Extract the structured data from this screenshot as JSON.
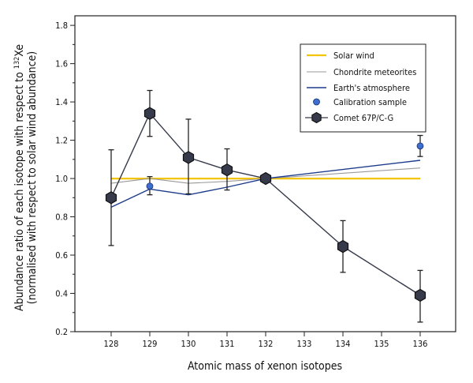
{
  "chart_data": {
    "type": "line",
    "title": "",
    "xlabel": "Atomic mass of xenon isotopes",
    "ylabel_line1": "Abundance ratio of each isotope with respect to ",
    "ylabel_sup": "132",
    "ylabel_elem": "Xe",
    "ylabel_line2": "(normalised with respect to solar wind abundance)",
    "x_categories": [
      "128",
      "129",
      "130",
      "131",
      "132",
      "133",
      "134",
      "135",
      "136"
    ],
    "y_ticks": [
      "0.2",
      "0.4",
      "0.6",
      "0.8",
      "1.0",
      "1.2",
      "1.4",
      "1.6",
      "1.8"
    ],
    "ylim": [
      0.2,
      1.85
    ],
    "grid": false,
    "legend_position": "top-right",
    "series": [
      {
        "name": "Solar wind",
        "kind": "line",
        "color": "#f5c400",
        "points": [
          [
            "128",
            1.0
          ],
          [
            "136",
            1.0
          ]
        ]
      },
      {
        "name": "Chondrite meteorites",
        "kind": "line",
        "color": "#9a9a9a",
        "points": [
          [
            "128",
            0.975
          ],
          [
            "129",
            1.0
          ],
          [
            "130",
            0.975
          ],
          [
            "131",
            0.985
          ],
          [
            "132",
            1.0
          ],
          [
            "136",
            1.055
          ]
        ]
      },
      {
        "name": "Earth's atmosphere",
        "kind": "line",
        "color": "#1e3c8c",
        "points": [
          [
            "128",
            0.85
          ],
          [
            "129",
            0.945
          ],
          [
            "130",
            0.915
          ],
          [
            "131",
            0.955
          ],
          [
            "132",
            1.0
          ],
          [
            "136",
            1.095
          ]
        ]
      },
      {
        "name": "Calibration sample",
        "kind": "points",
        "color": "#3d6fd0",
        "points": [
          {
            "x": "129",
            "y": 0.96,
            "lo": 0.915,
            "hi": 1.01
          },
          {
            "x": "136",
            "y": 1.17,
            "lo": 1.115,
            "hi": 1.225
          }
        ]
      },
      {
        "name": "Comet 67P/C-G",
        "kind": "line-markers",
        "color": "#363a4b",
        "points": [
          {
            "x": "128",
            "y": 0.9,
            "lo": 0.65,
            "hi": 1.15
          },
          {
            "x": "129",
            "y": 1.34,
            "lo": 1.22,
            "hi": 1.46
          },
          {
            "x": "130",
            "y": 1.11,
            "lo": 0.92,
            "hi": 1.31
          },
          {
            "x": "131",
            "y": 1.045,
            "lo": 0.94,
            "hi": 1.155
          },
          {
            "x": "132",
            "y": 1.0,
            "lo": 1.0,
            "hi": 1.0
          },
          {
            "x": "134",
            "y": 0.645,
            "lo": 0.51,
            "hi": 0.78
          },
          {
            "x": "136",
            "y": 0.39,
            "lo": 0.25,
            "hi": 0.52
          }
        ]
      }
    ]
  }
}
